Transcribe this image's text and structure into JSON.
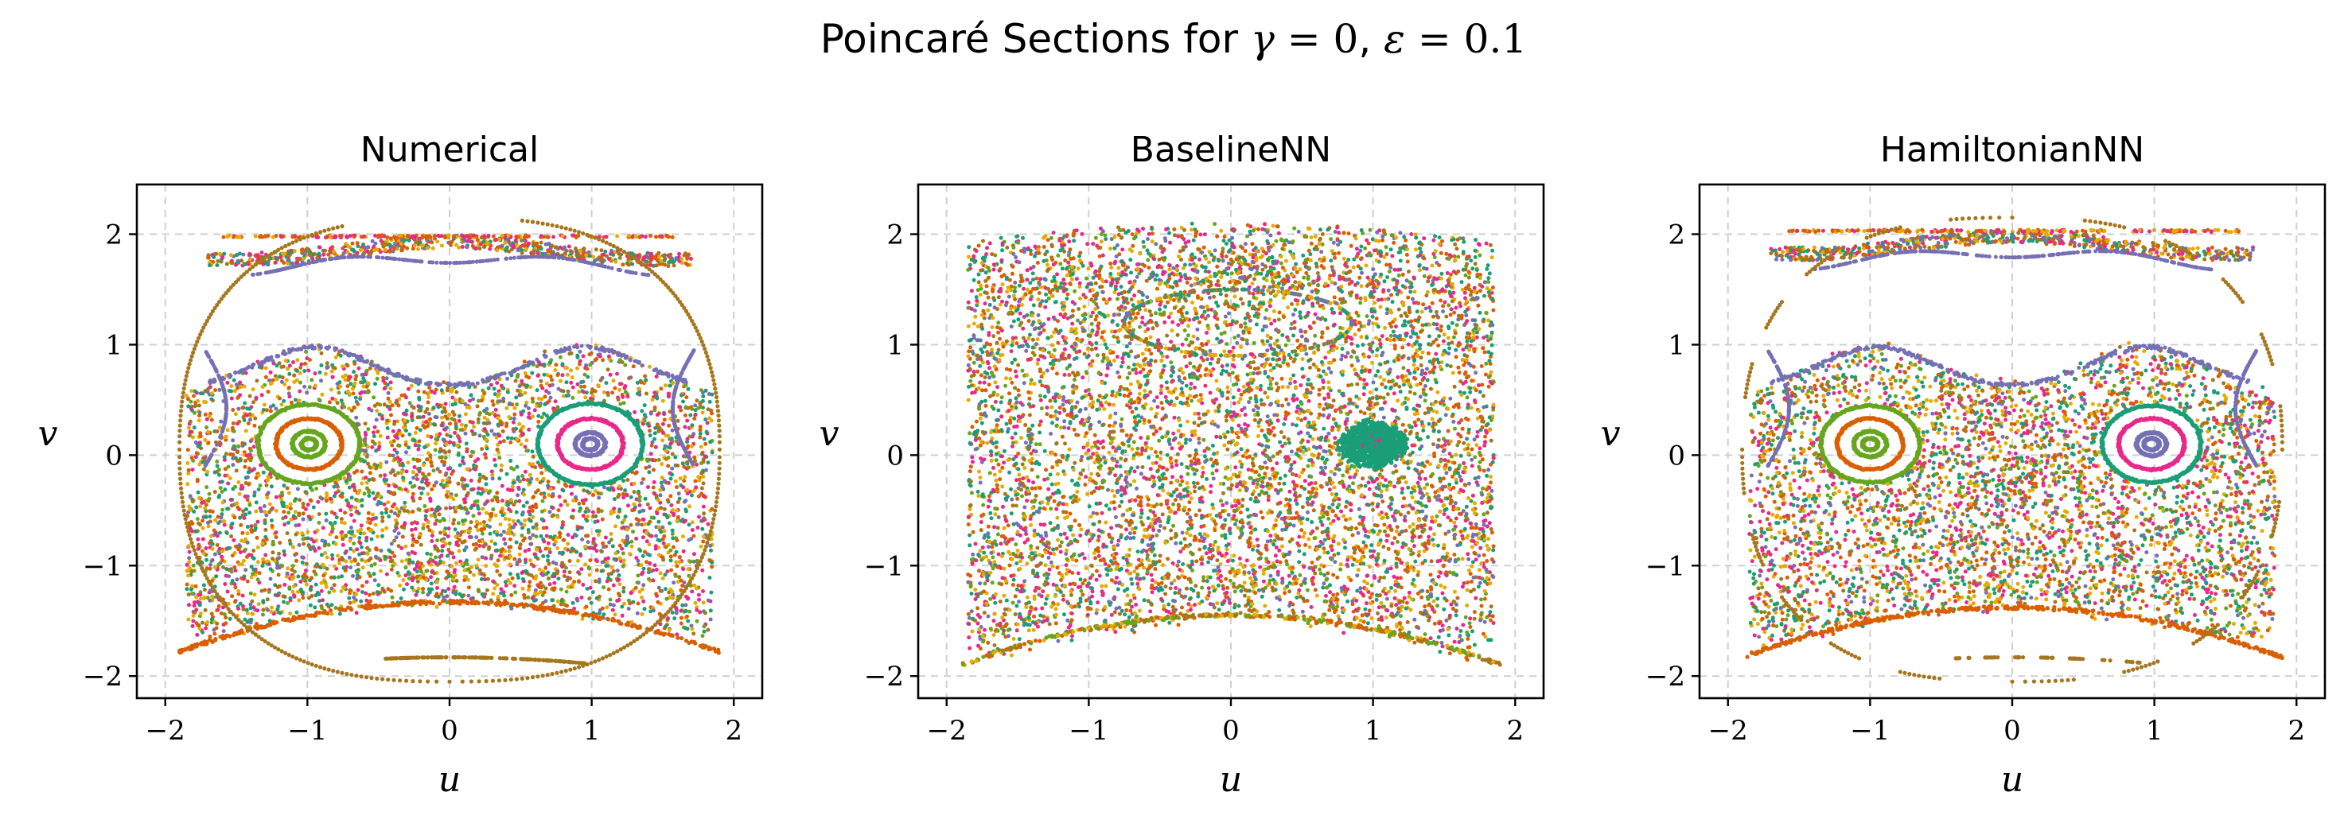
{
  "figure": {
    "title_prefix": "Poincaré Sections for ",
    "title_gamma_symbol": "γ",
    "title_equals_1": " = ",
    "title_gamma_value": "0",
    "title_separator": ", ",
    "title_eps_symbol": "ε",
    "title_equals_2": " = ",
    "title_eps_value": "0.1"
  },
  "chart_data": [
    {
      "type": "scatter",
      "title": "Numerical",
      "xlabel": "u",
      "ylabel": "v",
      "xlim": [
        -2.2,
        2.2
      ],
      "ylim": [
        -2.2,
        2.45
      ],
      "xticks": [
        -2,
        -1,
        0,
        1,
        2
      ],
      "yticks": [
        -2,
        -1,
        0,
        1,
        2
      ],
      "xtick_labels": [
        "−2",
        "−1",
        "0",
        "1",
        "2"
      ],
      "ytick_labels": [
        "−2",
        "−1",
        "0",
        "1",
        "2"
      ],
      "grid": true,
      "features": {
        "outer_curves": true,
        "top_band_y": 1.85,
        "upper_boundary": "wavy",
        "bottom_arc_vertex_y": -1.33,
        "bottom_segment_y": -1.83,
        "islands": [
          {
            "center": [
              -0.99,
              0.1
            ],
            "radii": [
              0.34,
              0.22,
              0.11,
              0.05
            ],
            "series": [
              3,
              5,
              3,
              3
            ]
          },
          {
            "center": [
              0.99,
              0.1
            ],
            "radii": [
              0.35,
              0.22,
              0.1,
              0.05
            ],
            "series": [
              0,
              2,
              1,
              1
            ]
          }
        ],
        "chaos_density": 1.0,
        "edge_fuzz": 0.05
      }
    },
    {
      "type": "scatter",
      "title": "BaselineNN",
      "xlabel": "u",
      "ylabel": "v",
      "xlim": [
        -2.2,
        2.2
      ],
      "ylim": [
        -2.2,
        2.45
      ],
      "xticks": [
        -2,
        -1,
        0,
        1,
        2
      ],
      "yticks": [
        -2,
        -1,
        0,
        1,
        2
      ],
      "xtick_labels": [
        "−2",
        "−1",
        "0",
        "1",
        "2"
      ],
      "ytick_labels": [
        "−2",
        "−1",
        "0",
        "1",
        "2"
      ],
      "grid": true,
      "features": {
        "outer_curves": false,
        "top_band_y": 1.7,
        "upper_boundary": "hole",
        "bottom_arc_vertex_y": -1.45,
        "islands": [
          {
            "center": [
              1.0,
              0.1
            ],
            "radii": [
              0.18,
              0.12,
              0.06,
              0.03
            ],
            "series": [
              0,
              0,
              0,
              2
            ]
          }
        ],
        "chaos_density": 1.4,
        "edge_fuzz": 0.12
      }
    },
    {
      "type": "scatter",
      "title": "HamiltonianNN",
      "xlabel": "u",
      "ylabel": "v",
      "xlim": [
        -2.2,
        2.2
      ],
      "ylim": [
        -2.2,
        2.45
      ],
      "xticks": [
        -2,
        -1,
        0,
        1,
        2
      ],
      "yticks": [
        -2,
        -1,
        0,
        1,
        2
      ],
      "xtick_labels": [
        "−2",
        "−1",
        "0",
        "1",
        "2"
      ],
      "ytick_labels": [
        "−2",
        "−1",
        "0",
        "1",
        "2"
      ],
      "grid": true,
      "features": {
        "outer_curves": true,
        "dashed_outer": true,
        "top_band_y": 1.9,
        "upper_boundary": "wavy",
        "bottom_arc_vertex_y": -1.38,
        "bottom_segment_y": -1.83,
        "islands": [
          {
            "center": [
              -1.0,
              0.1
            ],
            "radii": [
              0.33,
              0.22,
              0.11,
              0.05
            ],
            "series": [
              3,
              5,
              3,
              3
            ]
          },
          {
            "center": [
              0.98,
              0.1
            ],
            "radii": [
              0.33,
              0.22,
              0.1,
              0.05
            ],
            "series": [
              0,
              2,
              1,
              1
            ]
          }
        ],
        "chaos_density": 1.0,
        "edge_fuzz": 0.06
      }
    }
  ],
  "palette": [
    "#1b9e77",
    "#7570b3",
    "#e7298a",
    "#66a61e",
    "#e6ab02",
    "#d95f02",
    "#a6761d",
    "#666666"
  ]
}
